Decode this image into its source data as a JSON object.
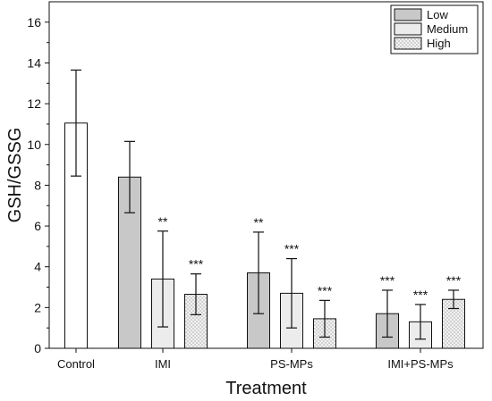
{
  "chart_data": {
    "type": "bar",
    "title": "",
    "xlabel": "Treatment",
    "ylabel": "GSH/GSSG",
    "ylim": [
      0,
      17
    ],
    "yticks": [
      0,
      2,
      4,
      6,
      8,
      10,
      12,
      14,
      16
    ],
    "grid": false,
    "legend_position": "top-right",
    "legend": [
      {
        "label": "Low",
        "fill": "#c8c8c8",
        "pattern": "solid"
      },
      {
        "label": "Medium",
        "fill": "#ececec",
        "pattern": "solid"
      },
      {
        "label": "High",
        "fill": "#f4f4f4",
        "pattern": "crosshatch"
      }
    ],
    "categories": [
      "Control",
      "IMI",
      "PS-MPs",
      "IMI+PS-MPs"
    ],
    "bars": [
      {
        "category": "Control",
        "level": "control",
        "value": 11.05,
        "error": 2.6,
        "sig": ""
      },
      {
        "category": "IMI",
        "level": "Low",
        "value": 8.4,
        "error": 1.75,
        "sig": ""
      },
      {
        "category": "IMI",
        "level": "Medium",
        "value": 3.4,
        "error": 2.35,
        "sig": "**"
      },
      {
        "category": "IMI",
        "level": "High",
        "value": 2.65,
        "error": 1.0,
        "sig": "***"
      },
      {
        "category": "PS-MPs",
        "level": "Low",
        "value": 3.7,
        "error": 2.0,
        "sig": "**"
      },
      {
        "category": "PS-MPs",
        "level": "Medium",
        "value": 2.7,
        "error": 1.7,
        "sig": "***"
      },
      {
        "category": "PS-MPs",
        "level": "High",
        "value": 1.45,
        "error": 0.9,
        "sig": "***"
      },
      {
        "category": "IMI+PS-MPs",
        "level": "Low",
        "value": 1.7,
        "error": 1.15,
        "sig": "***"
      },
      {
        "category": "IMI+PS-MPs",
        "level": "Medium",
        "value": 1.3,
        "error": 0.85,
        "sig": "***"
      },
      {
        "category": "IMI+PS-MPs",
        "level": "High",
        "value": 2.4,
        "error": 0.45,
        "sig": "***"
      }
    ],
    "colors": {
      "control": "#ffffff",
      "Low": "#c8c8c8",
      "Medium": "#ececec",
      "High": "#f4f4f4",
      "stroke": "#111111"
    }
  }
}
